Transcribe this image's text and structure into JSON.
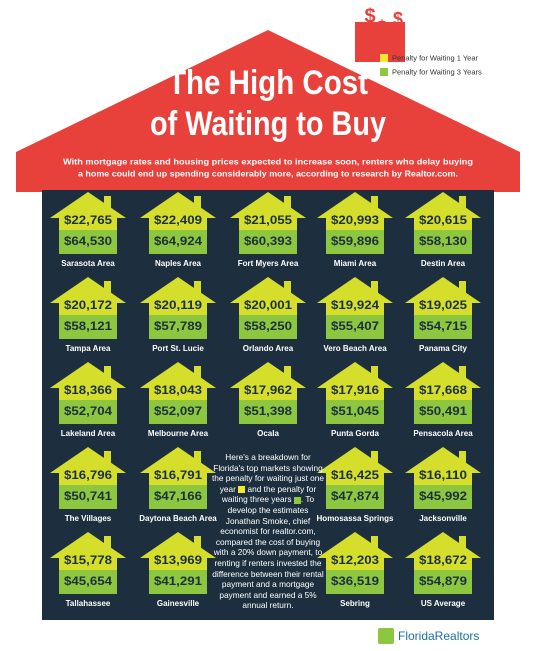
{
  "title_line1": "The High Cost",
  "title_line2": "of Waiting to Buy",
  "subtitle_line1": "With mortgage rates and housing prices expected to increase soon, renters who delay buying",
  "subtitle_line2": "a home could end up spending considerably more, according to research by Realtor.com.",
  "legend": [
    "Penalty for Waiting 1 Year",
    "Penalty for Waiting 3 Years"
  ],
  "markets": [
    {
      "name": "Sarasota Area",
      "one_year": "$22,765",
      "three_years": "$64,530"
    },
    {
      "name": "Naples Area",
      "one_year": "$22,409",
      "three_years": "$64,924"
    },
    {
      "name": "Fort Myers Area",
      "one_year": "$21,055",
      "three_years": "$60,393"
    },
    {
      "name": "Miami Area",
      "one_year": "$20,993",
      "three_years": "$59,896"
    },
    {
      "name": "Destin Area",
      "one_year": "$20,615",
      "three_years": "$58,130"
    },
    {
      "name": "Tampa Area",
      "one_year": "$20,172",
      "three_years": "$58,121"
    },
    {
      "name": "Port St. Lucie",
      "one_year": "$20,119",
      "three_years": "$57,789"
    },
    {
      "name": "Orlando Area",
      "one_year": "$20,001",
      "three_years": "$58,250"
    },
    {
      "name": "Vero Beach Area",
      "one_year": "$19,924",
      "three_years": "$55,407"
    },
    {
      "name": "Panama City",
      "one_year": "$19,025",
      "three_years": "$54,715"
    },
    {
      "name": "Lakeland Area",
      "one_year": "$18,366",
      "three_years": "$52,704"
    },
    {
      "name": "Melbourne Area",
      "one_year": "$18,043",
      "three_years": "$52,097"
    },
    {
      "name": "Ocala",
      "one_year": "$17,962",
      "three_years": "$51,398"
    },
    {
      "name": "Punta Gorda",
      "one_year": "$17,916",
      "three_years": "$51,045"
    },
    {
      "name": "Pensacola Area",
      "one_year": "$17,668",
      "three_years": "$50,491"
    },
    {
      "name": "The Villages",
      "one_year": "$16,796",
      "three_years": "$50,741"
    },
    {
      "name": "Daytona Beach Area",
      "one_year": "$16,791",
      "three_years": "$47,166"
    },
    {
      "name": "Homosassa Springs",
      "one_year": "$16,425",
      "three_years": "$47,874"
    },
    {
      "name": "Jacksonville",
      "one_year": "$16,110",
      "three_years": "$45,992"
    },
    {
      "name": "Tallahassee",
      "one_year": "$15,778",
      "three_years": "$45,654"
    },
    {
      "name": "Gainesville",
      "one_year": "$13,969",
      "three_years": "$41,291"
    },
    {
      "name": "Sebring",
      "one_year": "$12,203",
      "three_years": "$36,519"
    },
    {
      "name": "US Average",
      "one_year": "$18,672",
      "three_years": "$54,879"
    }
  ],
  "note_part1": "Here's a breakdown for Florida's top markets showing the penalty for waiting just one year",
  "note_part2": "and the penalty for waiting three years",
  "note_part3": ". To develop the estimates Jonathan Smoke, chief economist for realtor.com, compared the cost of buying with a 20% down payment, to renting if renters invested the difference between their rental payment and a mortgage payment and earned a 5% annual return.",
  "logo": "FloridaRealtors"
}
